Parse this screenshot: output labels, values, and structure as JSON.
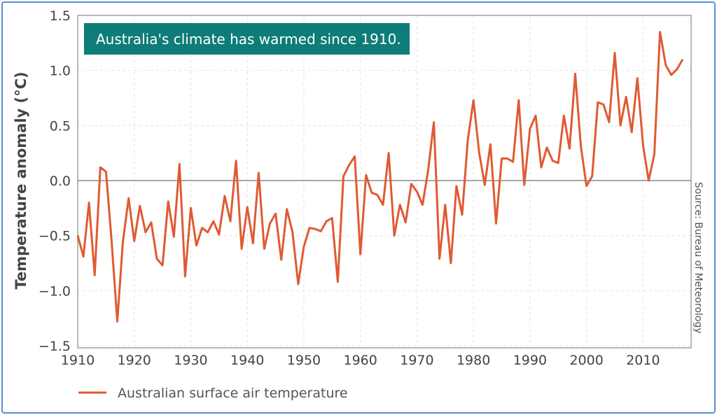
{
  "chart_data": {
    "type": "line",
    "title": "Australia's climate has warmed since 1910.",
    "xlabel": "",
    "ylabel": "Temperature anomaly (°C)",
    "source": "Source: Bureau of Meteorology",
    "xlim": [
      1910,
      2018.5
    ],
    "ylim": [
      -1.5,
      1.5
    ],
    "xticks": [
      "1910",
      "1920",
      "1930",
      "1940",
      "1950",
      "1960",
      "1970",
      "1980",
      "1990",
      "2000",
      "2010"
    ],
    "yticks": [
      "1.5",
      "1.0",
      "0.5",
      "0.0",
      "−0.5",
      "−1.0",
      "−1.5"
    ],
    "grid": true,
    "legend_position": "bottom-left",
    "colors": {
      "series": "#e05a33",
      "title_box": "#0e7c78",
      "frame": "#5b8fd0"
    },
    "x": [
      1910,
      1911,
      1912,
      1913,
      1914,
      1915,
      1916,
      1917,
      1918,
      1919,
      1920,
      1921,
      1922,
      1923,
      1924,
      1925,
      1926,
      1927,
      1928,
      1929,
      1930,
      1931,
      1932,
      1933,
      1934,
      1935,
      1936,
      1937,
      1938,
      1939,
      1940,
      1941,
      1942,
      1943,
      1944,
      1945,
      1946,
      1947,
      1948,
      1949,
      1950,
      1951,
      1952,
      1953,
      1954,
      1955,
      1956,
      1957,
      1958,
      1959,
      1960,
      1961,
      1962,
      1963,
      1964,
      1965,
      1966,
      1967,
      1968,
      1969,
      1970,
      1971,
      1972,
      1973,
      1974,
      1975,
      1976,
      1977,
      1978,
      1979,
      1980,
      1981,
      1982,
      1983,
      1984,
      1985,
      1986,
      1987,
      1988,
      1989,
      1990,
      1991,
      1992,
      1993,
      1994,
      1995,
      1996,
      1997,
      1998,
      1999,
      2000,
      2001,
      2002,
      2003,
      2004,
      2005,
      2006,
      2007,
      2008,
      2009,
      2010,
      2011,
      2012,
      2013,
      2014,
      2015,
      2016,
      2017
    ],
    "series": [
      {
        "name": "Australian surface air temperature",
        "values": [
          -0.5,
          -0.69,
          -0.2,
          -0.86,
          0.12,
          0.08,
          -0.55,
          -1.28,
          -0.55,
          -0.16,
          -0.55,
          -0.23,
          -0.47,
          -0.38,
          -0.71,
          -0.77,
          -0.19,
          -0.51,
          0.15,
          -0.87,
          -0.25,
          -0.59,
          -0.43,
          -0.47,
          -0.37,
          -0.49,
          -0.14,
          -0.37,
          0.18,
          -0.62,
          -0.24,
          -0.57,
          0.07,
          -0.62,
          -0.39,
          -0.3,
          -0.72,
          -0.26,
          -0.47,
          -0.94,
          -0.6,
          -0.43,
          -0.44,
          -0.46,
          -0.37,
          -0.34,
          -0.92,
          0.04,
          0.14,
          0.22,
          -0.67,
          0.05,
          -0.11,
          -0.13,
          -0.22,
          0.25,
          -0.5,
          -0.22,
          -0.38,
          -0.03,
          -0.1,
          -0.22,
          0.1,
          0.53,
          -0.71,
          -0.22,
          -0.75,
          -0.05,
          -0.31,
          0.37,
          0.73,
          0.26,
          -0.04,
          0.33,
          -0.39,
          0.2,
          0.2,
          0.17,
          0.73,
          -0.04,
          0.47,
          0.59,
          0.12,
          0.3,
          0.18,
          0.16,
          0.59,
          0.29,
          0.97,
          0.31,
          -0.05,
          0.04,
          0.71,
          0.69,
          0.53,
          1.16,
          0.5,
          0.76,
          0.44,
          0.93,
          0.32,
          0.0,
          0.24,
          1.35,
          1.05,
          0.96,
          1.01,
          1.1
        ]
      }
    ]
  }
}
